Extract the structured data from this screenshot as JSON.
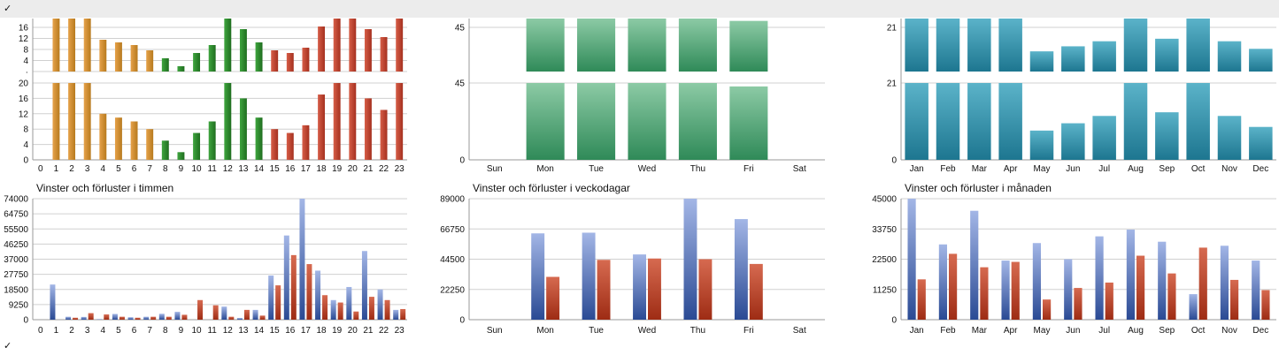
{
  "toolbar": {
    "collapse_top_mark": "✓",
    "collapse_bottom_mark": "✓"
  },
  "colors": {
    "hour_orange": "#c8862a",
    "hour_green": "#2e8b2e",
    "hour_red": "#b8402f",
    "weekday_green": "#5aa87e",
    "month_teal": "#2a90a8",
    "wins_blue": "#3d5fa8",
    "losses_red": "#b83a22",
    "grid": "#d0d0d0"
  },
  "chart_data": [
    {
      "type": "bar",
      "categories": [
        "0",
        "1",
        "2",
        "3",
        "4",
        "5",
        "6",
        "7",
        "8",
        "9",
        "10",
        "11",
        "12",
        "13",
        "14",
        "15",
        "16",
        "17",
        "18",
        "19",
        "20",
        "21",
        "22",
        "23"
      ],
      "values": [
        0,
        20,
        20,
        20,
        12,
        11,
        10,
        8,
        5,
        2,
        7,
        10,
        20,
        16,
        11,
        8,
        7,
        9,
        17,
        20,
        20,
        16,
        13,
        20
      ],
      "colors": [
        "#c8862a",
        "#c8862a",
        "#c8862a",
        "#c8862a",
        "#c8862a",
        "#c8862a",
        "#c8862a",
        "#c8862a",
        "#2e8b2e",
        "#2e8b2e",
        "#2e8b2e",
        "#2e8b2e",
        "#2e8b2e",
        "#2e8b2e",
        "#2e8b2e",
        "#b8402f",
        "#b8402f",
        "#b8402f",
        "#b8402f",
        "#b8402f",
        "#b8402f",
        "#b8402f",
        "#b8402f",
        "#b8402f"
      ],
      "yticks": [
        "0",
        "4",
        "8",
        "12",
        "16",
        "20"
      ],
      "yticks_upper": [
        "·",
        "4",
        "8",
        "12",
        "16"
      ],
      "ylim": [
        0,
        20
      ]
    },
    {
      "type": "bar",
      "categories": [
        "Sun",
        "Mon",
        "Tue",
        "Wed",
        "Thu",
        "Fri",
        "Sat"
      ],
      "values": [
        0,
        45,
        45,
        45,
        45,
        43,
        0
      ],
      "color": "#5aa87e",
      "yticks": [
        "0",
        "45"
      ],
      "yticks_upper": [
        "45"
      ],
      "ylim": [
        0,
        45
      ]
    },
    {
      "type": "bar",
      "categories": [
        "Jan",
        "Feb",
        "Mar",
        "Apr",
        "May",
        "Jun",
        "Jul",
        "Aug",
        "Sep",
        "Oct",
        "Nov",
        "Dec"
      ],
      "values": [
        21,
        21,
        21,
        21,
        8,
        10,
        12,
        21,
        13,
        21,
        12,
        9
      ],
      "color": "#2a90a8",
      "yticks": [
        "0",
        "21"
      ],
      "yticks_upper": [
        "21"
      ],
      "ylim": [
        0,
        21
      ]
    },
    {
      "type": "bar",
      "title": "Vinster och förluster i timmen",
      "categories": [
        "0",
        "1",
        "2",
        "3",
        "4",
        "5",
        "6",
        "7",
        "8",
        "9",
        "10",
        "11",
        "12",
        "13",
        "14",
        "15",
        "16",
        "17",
        "18",
        "19",
        "20",
        "21",
        "22",
        "23"
      ],
      "yticks": [
        "0",
        "9250",
        "18500",
        "27750",
        "37000",
        "46250",
        "55500",
        "64750",
        "74000"
      ],
      "ylim": [
        0,
        74000
      ],
      "series": [
        {
          "values": [
            0,
            21500,
            1800,
            1700,
            300,
            3500,
            1500,
            1800,
            3600,
            4800,
            0,
            0,
            8000,
            1000,
            6000,
            27000,
            51500,
            74000,
            30000,
            12000,
            20000,
            42000,
            18500,
            6000
          ],
          "color": "#3d5fa8"
        },
        {
          "values": [
            0,
            0,
            1200,
            4000,
            3200,
            1800,
            1200,
            1800,
            1800,
            3000,
            12000,
            8800,
            1800,
            6000,
            2500,
            21000,
            39500,
            34000,
            15000,
            10500,
            5000,
            14000,
            12000,
            6500
          ],
          "color": "#b83a22"
        }
      ]
    },
    {
      "type": "bar",
      "title": "Vinster och förluster i veckodagar",
      "categories": [
        "Sun",
        "Mon",
        "Tue",
        "Wed",
        "Thu",
        "Fri",
        "Sat"
      ],
      "yticks": [
        "0",
        "22250",
        "44500",
        "66750",
        "89000"
      ],
      "ylim": [
        0,
        89000
      ],
      "series": [
        {
          "values": [
            0,
            63500,
            64000,
            48000,
            89000,
            74000,
            0
          ],
          "color": "#3d5fa8"
        },
        {
          "values": [
            0,
            31500,
            44000,
            45000,
            44500,
            41000,
            0
          ],
          "color": "#b83a22"
        }
      ]
    },
    {
      "type": "bar",
      "title": "Vinster och förluster i månaden",
      "categories": [
        "Jan",
        "Feb",
        "Mar",
        "Apr",
        "May",
        "Jun",
        "Jul",
        "Aug",
        "Sep",
        "Oct",
        "Nov",
        "Dec"
      ],
      "yticks": [
        "0",
        "11250",
        "22500",
        "33750",
        "45000"
      ],
      "ylim": [
        0,
        45000
      ],
      "series": [
        {
          "values": [
            45000,
            28000,
            40500,
            22000,
            28500,
            22500,
            31000,
            33500,
            29000,
            9500,
            27500,
            22000
          ],
          "color": "#3d5fa8"
        },
        {
          "values": [
            15000,
            24500,
            19500,
            21500,
            7500,
            11800,
            13800,
            23800,
            17200,
            26800,
            14800,
            11000
          ],
          "color": "#b83a22"
        }
      ]
    }
  ]
}
